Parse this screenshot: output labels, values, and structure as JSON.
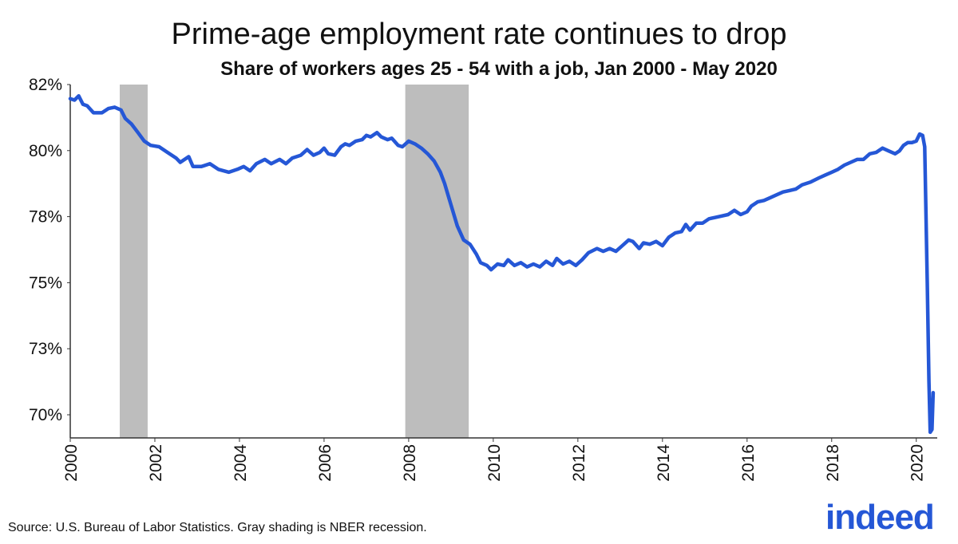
{
  "title": "Prime-age employment rate continues to drop",
  "subtitle": "Share of workers ages 25 - 54 with a job, Jan 2000 - May 2020",
  "source": "Source: U.S. Bureau of Labor Statistics. Gray shading is NBER recession.",
  "logo_text": "indeed",
  "colors": {
    "line": "#2557d6",
    "recession": "#bdbdbd",
    "logo": "#2557d6"
  },
  "chart_data": {
    "type": "line",
    "title": "Prime-age employment rate continues to drop",
    "subtitle": "Share of workers ages 25 - 54 with a job, Jan 2000 - May 2020",
    "xlabel": "",
    "ylabel": "",
    "xlim": [
      2000,
      2020.42
    ],
    "ylim": [
      69.5,
      82
    ],
    "x_ticks": [
      "2000",
      "2002",
      "2004",
      "2006",
      "2008",
      "2010",
      "2012",
      "2014",
      "2016",
      "2018",
      "2020"
    ],
    "y_ticks": [
      "82%",
      "80%",
      "78%",
      "75%",
      "73%",
      "70%"
    ],
    "grid": false,
    "recessions": [
      {
        "start": 2001.17,
        "end": 2001.83
      },
      {
        "start": 2007.92,
        "end": 2009.42
      }
    ],
    "series": [
      {
        "values": [
          [
            2000.0,
            81.5
          ],
          [
            2000.1,
            81.45
          ],
          [
            2000.2,
            81.6
          ],
          [
            2000.3,
            81.3
          ],
          [
            2000.4,
            81.25
          ],
          [
            2000.55,
            81.0
          ],
          [
            2000.75,
            81.0
          ],
          [
            2000.9,
            81.15
          ],
          [
            2001.05,
            81.2
          ],
          [
            2001.2,
            81.1
          ],
          [
            2001.3,
            80.8
          ],
          [
            2001.45,
            80.6
          ],
          [
            2001.6,
            80.3
          ],
          [
            2001.75,
            80.0
          ],
          [
            2001.9,
            79.85
          ],
          [
            2002.1,
            79.8
          ],
          [
            2002.3,
            79.6
          ],
          [
            2002.5,
            79.4
          ],
          [
            2002.6,
            79.25
          ],
          [
            2002.8,
            79.45
          ],
          [
            2002.9,
            79.1
          ],
          [
            2003.1,
            79.1
          ],
          [
            2003.3,
            79.2
          ],
          [
            2003.5,
            79.0
          ],
          [
            2003.75,
            78.9
          ],
          [
            2003.95,
            79.0
          ],
          [
            2004.1,
            79.1
          ],
          [
            2004.25,
            78.95
          ],
          [
            2004.4,
            79.2
          ],
          [
            2004.6,
            79.35
          ],
          [
            2004.75,
            79.2
          ],
          [
            2004.95,
            79.35
          ],
          [
            2005.1,
            79.2
          ],
          [
            2005.25,
            79.4
          ],
          [
            2005.45,
            79.5
          ],
          [
            2005.6,
            79.7
          ],
          [
            2005.75,
            79.5
          ],
          [
            2005.9,
            79.6
          ],
          [
            2006.0,
            79.75
          ],
          [
            2006.1,
            79.55
          ],
          [
            2006.25,
            79.5
          ],
          [
            2006.4,
            79.8
          ],
          [
            2006.5,
            79.9
          ],
          [
            2006.6,
            79.85
          ],
          [
            2006.75,
            80.0
          ],
          [
            2006.9,
            80.05
          ],
          [
            2007.0,
            80.2
          ],
          [
            2007.1,
            80.15
          ],
          [
            2007.25,
            80.3
          ],
          [
            2007.35,
            80.15
          ],
          [
            2007.5,
            80.05
          ],
          [
            2007.6,
            80.1
          ],
          [
            2007.75,
            79.85
          ],
          [
            2007.85,
            79.8
          ],
          [
            2008.0,
            80.0
          ],
          [
            2008.15,
            79.9
          ],
          [
            2008.3,
            79.75
          ],
          [
            2008.45,
            79.55
          ],
          [
            2008.6,
            79.3
          ],
          [
            2008.75,
            78.9
          ],
          [
            2008.85,
            78.5
          ],
          [
            2008.95,
            78.0
          ],
          [
            2009.05,
            77.5
          ],
          [
            2009.15,
            77.0
          ],
          [
            2009.3,
            76.5
          ],
          [
            2009.45,
            76.35
          ],
          [
            2009.6,
            76.0
          ],
          [
            2009.7,
            75.7
          ],
          [
            2009.85,
            75.6
          ],
          [
            2009.95,
            75.45
          ],
          [
            2010.1,
            75.65
          ],
          [
            2010.25,
            75.6
          ],
          [
            2010.35,
            75.8
          ],
          [
            2010.5,
            75.6
          ],
          [
            2010.65,
            75.7
          ],
          [
            2010.8,
            75.55
          ],
          [
            2010.95,
            75.65
          ],
          [
            2011.1,
            75.55
          ],
          [
            2011.25,
            75.75
          ],
          [
            2011.4,
            75.6
          ],
          [
            2011.5,
            75.85
          ],
          [
            2011.65,
            75.65
          ],
          [
            2011.8,
            75.75
          ],
          [
            2011.95,
            75.6
          ],
          [
            2012.1,
            75.8
          ],
          [
            2012.25,
            76.05
          ],
          [
            2012.45,
            76.2
          ],
          [
            2012.6,
            76.1
          ],
          [
            2012.75,
            76.2
          ],
          [
            2012.9,
            76.1
          ],
          [
            2013.05,
            76.3
          ],
          [
            2013.2,
            76.5
          ],
          [
            2013.3,
            76.45
          ],
          [
            2013.45,
            76.2
          ],
          [
            2013.55,
            76.4
          ],
          [
            2013.7,
            76.35
          ],
          [
            2013.85,
            76.45
          ],
          [
            2014.0,
            76.3
          ],
          [
            2014.15,
            76.6
          ],
          [
            2014.3,
            76.75
          ],
          [
            2014.45,
            76.8
          ],
          [
            2014.55,
            77.05
          ],
          [
            2014.65,
            76.85
          ],
          [
            2014.8,
            77.1
          ],
          [
            2014.95,
            77.1
          ],
          [
            2015.1,
            77.25
          ],
          [
            2015.25,
            77.3
          ],
          [
            2015.4,
            77.35
          ],
          [
            2015.55,
            77.4
          ],
          [
            2015.7,
            77.55
          ],
          [
            2015.85,
            77.4
          ],
          [
            2016.0,
            77.5
          ],
          [
            2016.1,
            77.7
          ],
          [
            2016.25,
            77.85
          ],
          [
            2016.4,
            77.9
          ],
          [
            2016.55,
            78.0
          ],
          [
            2016.7,
            78.1
          ],
          [
            2016.85,
            78.2
          ],
          [
            2017.0,
            78.25
          ],
          [
            2017.15,
            78.3
          ],
          [
            2017.3,
            78.45
          ],
          [
            2017.5,
            78.55
          ],
          [
            2017.7,
            78.7
          ],
          [
            2017.85,
            78.8
          ],
          [
            2018.0,
            78.9
          ],
          [
            2018.15,
            79.0
          ],
          [
            2018.3,
            79.15
          ],
          [
            2018.45,
            79.25
          ],
          [
            2018.6,
            79.35
          ],
          [
            2018.75,
            79.35
          ],
          [
            2018.9,
            79.55
          ],
          [
            2019.05,
            79.6
          ],
          [
            2019.2,
            79.75
          ],
          [
            2019.35,
            79.65
          ],
          [
            2019.5,
            79.55
          ],
          [
            2019.6,
            79.65
          ],
          [
            2019.7,
            79.85
          ],
          [
            2019.8,
            79.95
          ],
          [
            2019.9,
            79.95
          ],
          [
            2020.0,
            80.0
          ],
          [
            2020.08,
            80.25
          ],
          [
            2020.15,
            80.2
          ],
          [
            2020.2,
            79.8
          ],
          [
            2020.26,
            75.0
          ],
          [
            2020.3,
            71.5
          ],
          [
            2020.33,
            69.7
          ],
          [
            2020.37,
            69.8
          ],
          [
            2020.4,
            71.1
          ]
        ]
      }
    ]
  }
}
